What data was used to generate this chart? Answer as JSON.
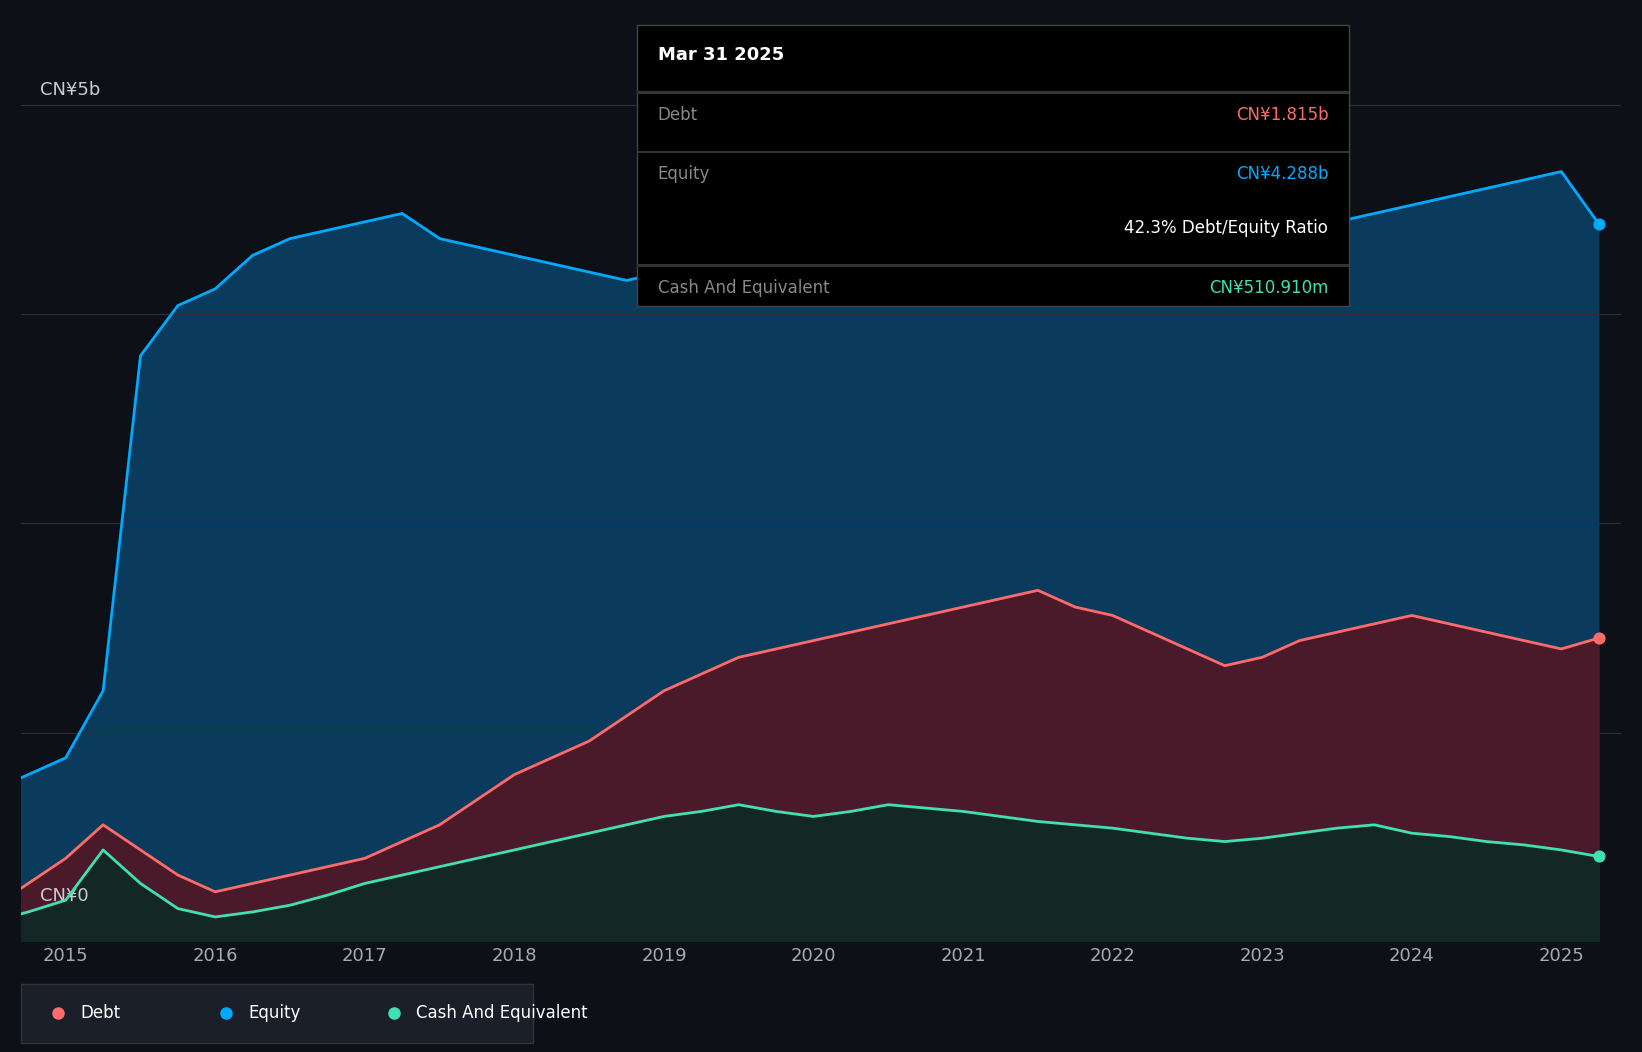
{
  "bg_color": "#0d1117",
  "plot_bg_color": "#0d1117",
  "ylabel_top": "CN¥5b",
  "ylabel_bottom": "CN¥0",
  "x_ticks": [
    2015,
    2016,
    2017,
    2018,
    2019,
    2020,
    2021,
    2022,
    2023,
    2024,
    2025
  ],
  "grid_color": "#2a2f3a",
  "equity_color": "#00aaff",
  "equity_fill": "#0a3a5c",
  "debt_color": "#ff6b6b",
  "debt_fill": "#4a1a2a",
  "cash_color": "#40e0b0",
  "cash_fill": "#0a2a25",
  "tooltip_title": "Mar 31 2025",
  "tooltip_debt_label": "Debt",
  "tooltip_debt_value": "CN¥1.815b",
  "tooltip_equity_label": "Equity",
  "tooltip_equity_value": "CN¥4.288b",
  "tooltip_ratio": "42.3% Debt/Equity Ratio",
  "tooltip_cash_label": "Cash And Equivalent",
  "tooltip_cash_value": "CN¥510.910m",
  "legend_items": [
    "Debt",
    "Equity",
    "Cash And Equivalent"
  ],
  "legend_colors": [
    "#ff6b6b",
    "#00aaff",
    "#40e0b0"
  ],
  "dates": [
    2014.0,
    2014.25,
    2014.5,
    2014.75,
    2015.0,
    2015.25,
    2015.5,
    2015.75,
    2016.0,
    2016.25,
    2016.5,
    2016.75,
    2017.0,
    2017.25,
    2017.5,
    2017.75,
    2018.0,
    2018.25,
    2018.5,
    2018.75,
    2019.0,
    2019.25,
    2019.5,
    2019.75,
    2020.0,
    2020.25,
    2020.5,
    2020.75,
    2021.0,
    2021.25,
    2021.5,
    2021.75,
    2022.0,
    2022.25,
    2022.5,
    2022.75,
    2023.0,
    2023.25,
    2023.5,
    2023.75,
    2024.0,
    2024.25,
    2024.5,
    2024.75,
    2025.0,
    2025.25
  ],
  "equity": [
    0.8,
    0.85,
    0.9,
    1.0,
    1.1,
    1.5,
    3.5,
    3.8,
    3.9,
    4.1,
    4.2,
    4.25,
    4.3,
    4.35,
    4.2,
    4.15,
    4.1,
    4.05,
    4.0,
    3.95,
    4.0,
    4.1,
    4.2,
    4.15,
    4.1,
    4.15,
    4.2,
    4.25,
    4.4,
    4.5,
    4.6,
    4.5,
    4.3,
    4.2,
    4.1,
    4.0,
    4.1,
    4.2,
    4.3,
    4.35,
    4.4,
    4.45,
    4.5,
    4.55,
    4.6,
    4.288
  ],
  "debt": [
    0.05,
    0.1,
    0.2,
    0.35,
    0.5,
    0.7,
    0.55,
    0.4,
    0.3,
    0.35,
    0.4,
    0.45,
    0.5,
    0.6,
    0.7,
    0.85,
    1.0,
    1.1,
    1.2,
    1.35,
    1.5,
    1.6,
    1.7,
    1.75,
    1.8,
    1.85,
    1.9,
    1.95,
    2.0,
    2.05,
    2.1,
    2.0,
    1.95,
    1.85,
    1.75,
    1.65,
    1.7,
    1.8,
    1.85,
    1.9,
    1.95,
    1.9,
    1.85,
    1.8,
    1.75,
    1.815
  ],
  "cash": [
    0.05,
    0.08,
    0.12,
    0.18,
    0.25,
    0.55,
    0.35,
    0.2,
    0.15,
    0.18,
    0.22,
    0.28,
    0.35,
    0.4,
    0.45,
    0.5,
    0.55,
    0.6,
    0.65,
    0.7,
    0.75,
    0.78,
    0.82,
    0.78,
    0.75,
    0.78,
    0.82,
    0.8,
    0.78,
    0.75,
    0.72,
    0.7,
    0.68,
    0.65,
    0.62,
    0.6,
    0.62,
    0.65,
    0.68,
    0.7,
    0.65,
    0.63,
    0.6,
    0.58,
    0.55,
    0.5109
  ],
  "xlim": [
    2014.7,
    2025.4
  ],
  "ylim": [
    0,
    5.5
  ]
}
